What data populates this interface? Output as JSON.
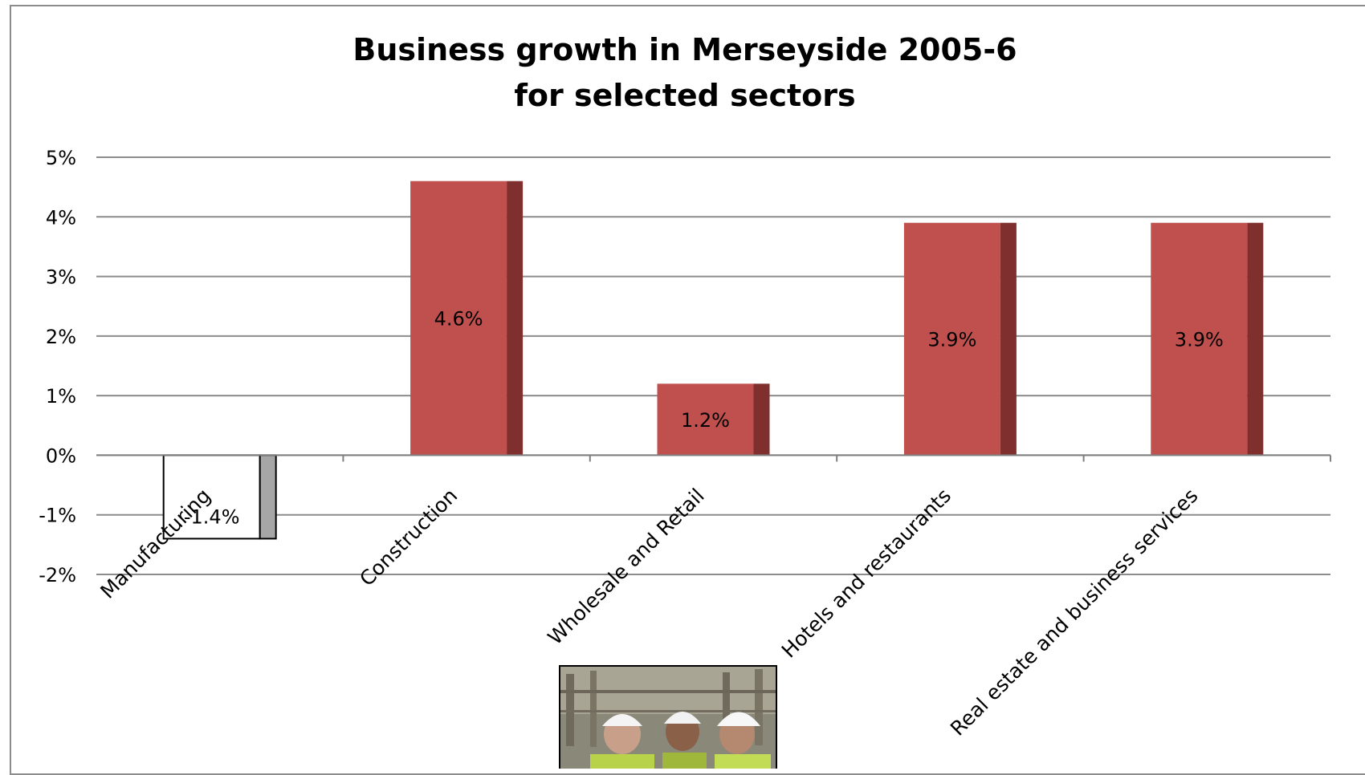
{
  "chart_data": {
    "type": "bar",
    "title": [
      "Business growth in Merseyside 2005-6",
      "for selected sectors"
    ],
    "categories": [
      "Manufacturing",
      "Construction",
      "Wholesale and Retail",
      "Hotels and restaurants",
      "Real estate and business services"
    ],
    "values": [
      -1.4,
      4.6,
      1.2,
      3.9,
      3.9
    ],
    "data_labels": [
      "-1.4%",
      "4.6%",
      "1.2%",
      "3.9%",
      "3.9%"
    ],
    "ylim": [
      -2,
      5
    ],
    "yticks": [
      5,
      4,
      3,
      2,
      1,
      0,
      -1,
      -2
    ],
    "ytick_labels": [
      "5%",
      "4%",
      "3%",
      "2%",
      "1%",
      "0%",
      "-1%",
      "-2%"
    ],
    "grid": true,
    "legend": "none",
    "colors": {
      "positive_face": "#c0504d",
      "positive_side": "#7f2f2d",
      "negative_face": "#ffffff",
      "negative_side": "#a6a6a6",
      "gridline": "#8c8c8c"
    }
  },
  "photo": {
    "icon": "construction-workers-photo"
  }
}
